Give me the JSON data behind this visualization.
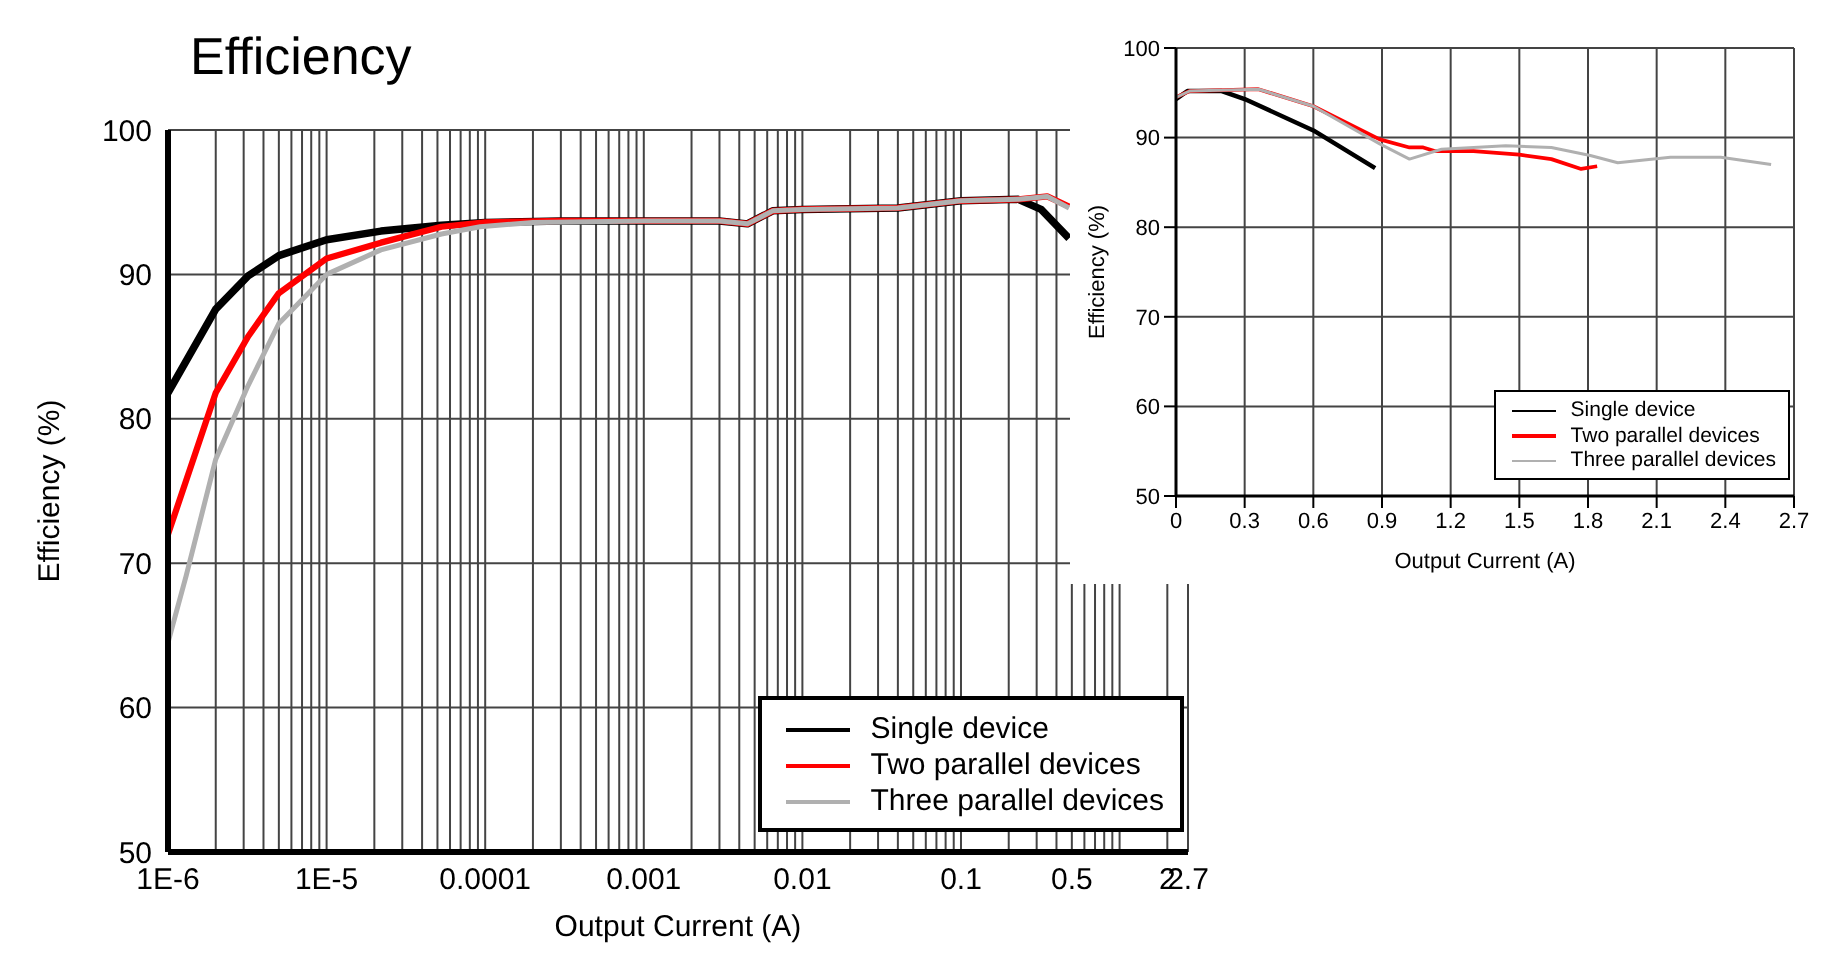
{
  "chart_data": [
    {
      "type": "line",
      "title": "Efficiency",
      "xlabel": "Output Current (A)",
      "ylabel": "Efficiency (%)",
      "log": "x",
      "xlim": [
        1e-06,
        2.7
      ],
      "ylim": [
        50,
        100
      ],
      "yticks": [
        50,
        60,
        70,
        80,
        90,
        100
      ],
      "xticks": [
        {
          "value": 1e-06,
          "label": "1E-6"
        },
        {
          "value": 2e-06,
          "label": null
        },
        {
          "value": 3e-06,
          "label": null
        },
        {
          "value": 4e-06,
          "label": null
        },
        {
          "value": 5e-06,
          "label": null
        },
        {
          "value": 6e-06,
          "label": null
        },
        {
          "value": 7e-06,
          "label": null
        },
        {
          "value": 8e-06,
          "label": null
        },
        {
          "value": 9e-06,
          "label": null
        },
        {
          "value": 1e-05,
          "label": "1E-5"
        },
        {
          "value": 2e-05,
          "label": null
        },
        {
          "value": 3e-05,
          "label": null
        },
        {
          "value": 4e-05,
          "label": null
        },
        {
          "value": 5e-05,
          "label": null
        },
        {
          "value": 6e-05,
          "label": null
        },
        {
          "value": 7e-05,
          "label": null
        },
        {
          "value": 8e-05,
          "label": null
        },
        {
          "value": 9e-05,
          "label": null
        },
        0.0001,
        {
          "value": 0.0002,
          "label": null
        },
        {
          "value": 0.0003,
          "label": null
        },
        {
          "value": 0.0004,
          "label": null
        },
        {
          "value": 0.0005,
          "label": null
        },
        {
          "value": 0.0006,
          "label": null
        },
        {
          "value": 0.0007,
          "label": null
        },
        {
          "value": 0.0008,
          "label": null
        },
        {
          "value": 0.0009,
          "label": null
        },
        0.001,
        {
          "value": 0.002,
          "label": null
        },
        {
          "value": 0.003,
          "label": null
        },
        {
          "value": 0.004,
          "label": null
        },
        {
          "value": 0.005,
          "label": null
        },
        {
          "value": 0.006,
          "label": null
        },
        {
          "value": 0.007,
          "label": null
        },
        {
          "value": 0.008,
          "label": null
        },
        {
          "value": 0.009,
          "label": null
        },
        0.01,
        {
          "value": 0.02,
          "label": null
        },
        {
          "value": 0.03,
          "label": null
        },
        {
          "value": 0.04,
          "label": null
        },
        {
          "value": 0.05,
          "label": null
        },
        {
          "value": 0.06,
          "label": null
        },
        {
          "value": 0.07,
          "label": null
        },
        {
          "value": 0.08,
          "label": null
        },
        {
          "value": 0.09,
          "label": null
        },
        0.1,
        {
          "value": 0.2,
          "label": null
        },
        {
          "value": 0.3,
          "label": null
        },
        {
          "value": 0.4,
          "label": null
        },
        0.5,
        {
          "value": 0.6,
          "label": null
        },
        {
          "value": 0.7,
          "label": null
        },
        {
          "value": 0.8,
          "label": null
        },
        {
          "value": 0.9,
          "label": null
        },
        {
          "value": 1,
          "label": null
        },
        2,
        2.7
      ],
      "grid": true,
      "legend": "bottom right",
      "series": [
        {
          "name": "Single device",
          "color": "#000000",
          "x": [
            1e-06,
            2e-06,
            3.2e-06,
            5e-06,
            1e-05,
            2.2e-05,
            5.3e-05,
            0.0001,
            0.0003,
            0.001,
            0.003,
            0.0045,
            0.0065,
            0.01,
            0.04,
            0.1,
            0.23,
            0.32,
            0.48
          ],
          "values": [
            81.8,
            87.6,
            89.9,
            91.3,
            92.4,
            93.0,
            93.4,
            93.6,
            93.7,
            93.7,
            93.7,
            93.5,
            94.4,
            94.5,
            94.6,
            95.1,
            95.2,
            94.5,
            92.5
          ]
        },
        {
          "name": "Two parallel devices",
          "color": "#ff0000",
          "x": [
            1e-06,
            2e-06,
            3.2e-06,
            5e-06,
            1e-05,
            2.2e-05,
            5.3e-05,
            0.0001,
            0.0003,
            0.001,
            0.003,
            0.0045,
            0.0065,
            0.01,
            0.04,
            0.1,
            0.23,
            0.35,
            0.48
          ],
          "values": [
            72.0,
            81.8,
            85.7,
            88.7,
            91.1,
            92.2,
            93.3,
            93.6,
            93.7,
            93.7,
            93.7,
            93.5,
            94.4,
            94.5,
            94.6,
            95.1,
            95.2,
            95.4,
            94.7
          ]
        },
        {
          "name": "Three parallel devices",
          "color": "#b0b0b0",
          "x": [
            1e-06,
            1.3e-06,
            2e-06,
            3.2e-06,
            5e-06,
            1e-05,
            2.2e-05,
            5.3e-05,
            9.3e-05,
            0.0002,
            0.001,
            0.003,
            0.0045,
            0.0065,
            0.01,
            0.04,
            0.1,
            0.23,
            0.35,
            0.48
          ],
          "values": [
            64.5,
            69.1,
            77.2,
            82.3,
            86.6,
            90.0,
            91.7,
            92.8,
            93.3,
            93.6,
            93.7,
            93.7,
            93.5,
            94.4,
            94.5,
            94.6,
            95.1,
            95.2,
            95.4,
            94.6
          ]
        }
      ]
    },
    {
      "type": "line",
      "xlabel": "Output Current (A)",
      "ylabel": "Efficiency (%)",
      "xlim": [
        0,
        2.7
      ],
      "ylim": [
        50,
        100
      ],
      "xticks": [
        0,
        0.3,
        0.6,
        0.9,
        1.2,
        1.5,
        1.8,
        2.1,
        2.4,
        2.7
      ],
      "yticks": [
        50,
        60,
        70,
        80,
        90,
        100
      ],
      "grid": true,
      "legend": "bottom right",
      "series": [
        {
          "name": "Single device",
          "color": "#000000",
          "x": [
            0,
            0.05,
            0.2,
            0.3,
            0.6,
            0.87
          ],
          "values": [
            94.3,
            95.2,
            95.2,
            94.3,
            90.8,
            86.6
          ]
        },
        {
          "name": "Two parallel devices",
          "color": "#ff0000",
          "x": [
            0,
            0.06,
            0.36,
            0.6,
            0.89,
            1.02,
            1.08,
            1.13,
            1.3,
            1.5,
            1.64,
            1.77,
            1.84
          ],
          "values": [
            94.5,
            95.2,
            95.4,
            93.5,
            89.8,
            88.9,
            88.9,
            88.5,
            88.5,
            88.1,
            87.6,
            86.5,
            86.8
          ]
        },
        {
          "name": "Three parallel devices",
          "color": "#b0b0b0",
          "x": [
            0,
            0.06,
            0.36,
            0.6,
            0.89,
            1.02,
            1.16,
            1.44,
            1.64,
            1.81,
            1.93,
            2.16,
            2.38,
            2.6
          ],
          "values": [
            94.5,
            95.2,
            95.4,
            93.5,
            89.3,
            87.6,
            88.7,
            89.1,
            88.9,
            88.0,
            87.2,
            87.8,
            87.8,
            87.0
          ]
        }
      ]
    }
  ]
}
